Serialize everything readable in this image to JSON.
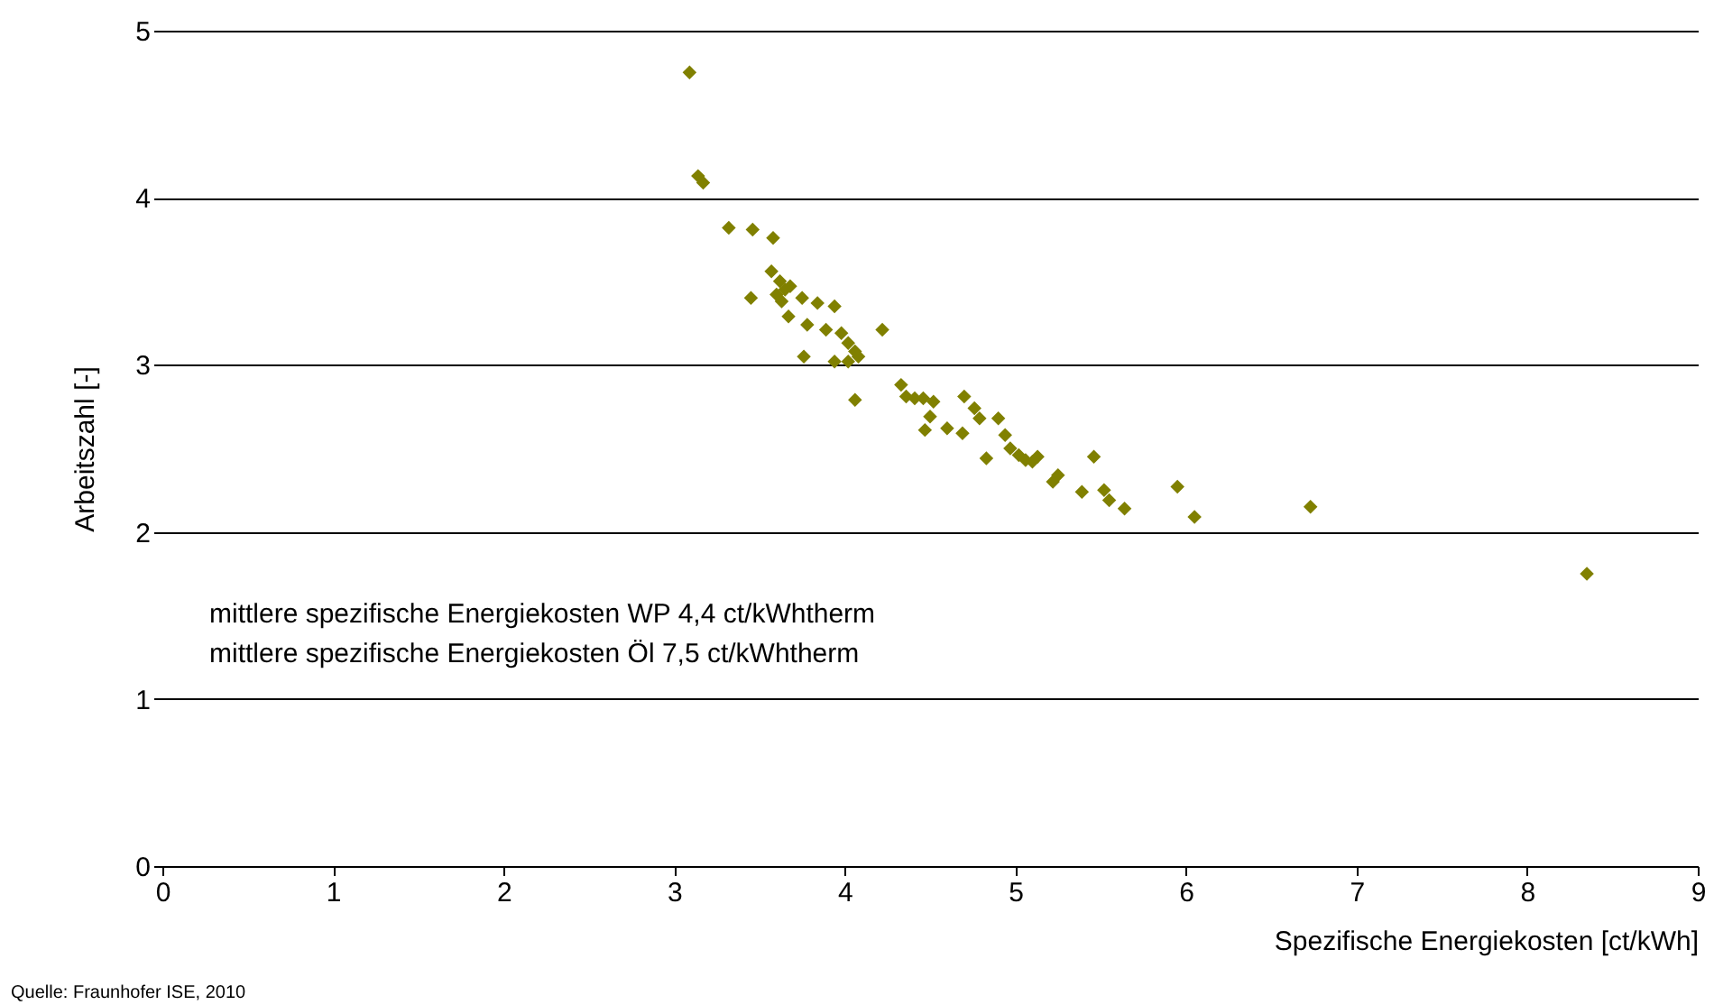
{
  "chart_data": {
    "type": "scatter",
    "xlabel": "Spezifische Energiekosten [ct/kWh]",
    "ylabel": "Arbeitszahl [-]",
    "annotations": [
      "mittlere spezifische Energiekosten WP  4,4 ct/kWhtherm",
      "mittlere spezifische Energiekosten Öl  7,5 ct/kWhtherm",
      "Quelle: Fraunhofer ISE, 2010"
    ],
    "xlim": [
      0,
      9
    ],
    "xticks": [
      0,
      1,
      2,
      3,
      4,
      5,
      6,
      7,
      8,
      9
    ],
    "ylim": [
      0,
      5
    ],
    "yticks": [
      0,
      1,
      2,
      3,
      4,
      5
    ],
    "grid": "y",
    "marker": "diamond",
    "series": [
      {
        "color": "#808000",
        "x": [
          3.09,
          3.14,
          3.17,
          3.32,
          3.46,
          3.58,
          3.45,
          3.57,
          3.62,
          3.65,
          3.6,
          3.68,
          3.63,
          3.75,
          3.84,
          3.67,
          3.78,
          3.94,
          3.89,
          3.98,
          4.02,
          4.06,
          4.02,
          4.08,
          3.76,
          3.94,
          4.22,
          4.06,
          4.33,
          4.36,
          4.41,
          4.46,
          4.52,
          4.5,
          4.47,
          4.6,
          4.69,
          4.7,
          4.76,
          4.79,
          4.9,
          4.94,
          4.83,
          4.97,
          5.02,
          5.06,
          5.1,
          5.13,
          5.25,
          5.22,
          5.46,
          5.39,
          5.52,
          5.55,
          5.64,
          5.95,
          6.05,
          6.73,
          8.35
        ],
        "values": [
          4.75,
          4.13,
          4.09,
          3.82,
          3.81,
          3.76,
          3.4,
          3.56,
          3.5,
          3.45,
          3.42,
          3.47,
          3.38,
          3.4,
          3.37,
          3.29,
          3.24,
          3.35,
          3.21,
          3.19,
          3.13,
          3.08,
          3.02,
          3.05,
          3.05,
          3.02,
          3.21,
          2.79,
          2.88,
          2.81,
          2.8,
          2.8,
          2.78,
          2.69,
          2.61,
          2.62,
          2.59,
          2.81,
          2.74,
          2.68,
          2.68,
          2.58,
          2.44,
          2.5,
          2.46,
          2.43,
          2.42,
          2.45,
          2.34,
          2.3,
          2.45,
          2.24,
          2.25,
          2.19,
          2.14,
          2.27,
          2.09,
          2.15,
          1.75
        ]
      }
    ]
  }
}
